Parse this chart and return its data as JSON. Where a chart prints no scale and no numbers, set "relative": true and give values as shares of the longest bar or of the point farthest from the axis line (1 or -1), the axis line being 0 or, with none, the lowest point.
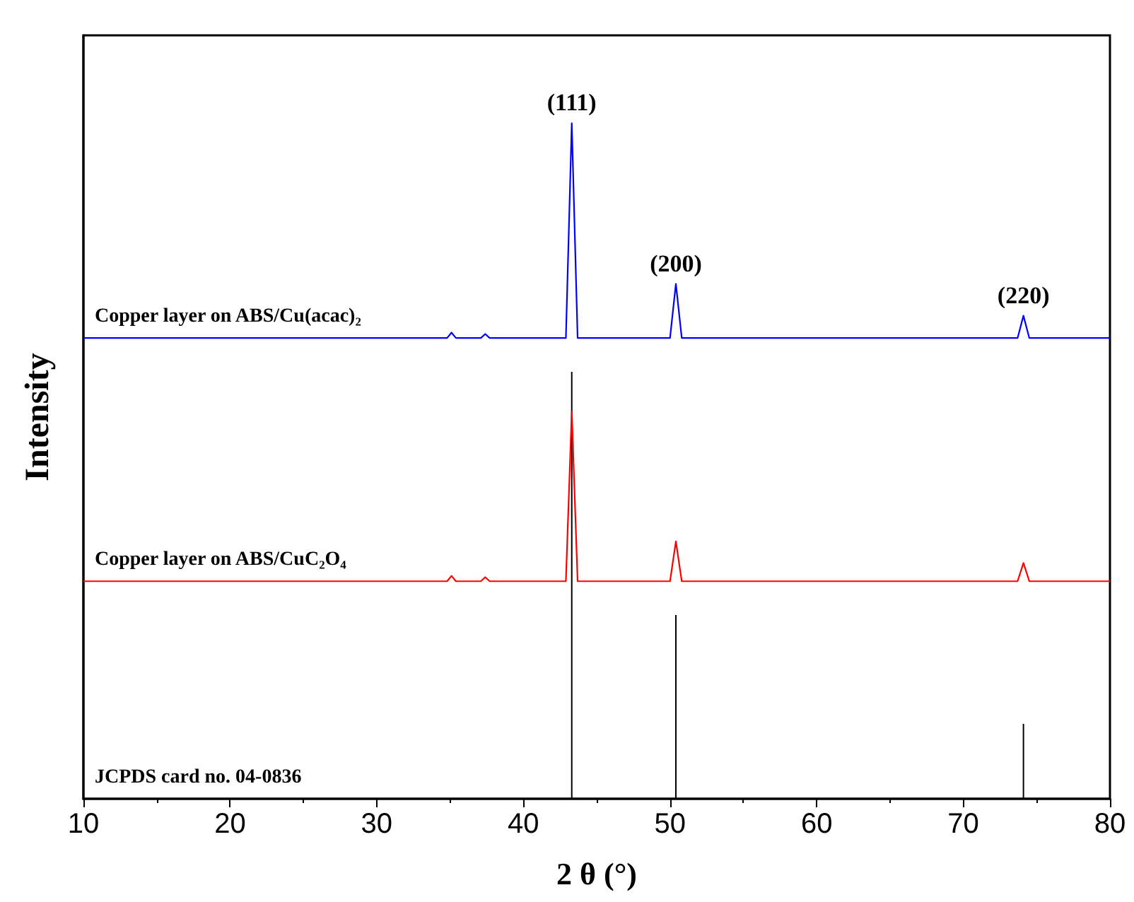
{
  "chart_data": {
    "type": "line",
    "xlabel": "2 θ (°)",
    "ylabel": "Intensity",
    "relative": true,
    "marker": "none",
    "legend": false,
    "grid": false,
    "xlim": [
      10,
      80
    ],
    "xticks": [
      10,
      20,
      30,
      40,
      50,
      60,
      70,
      80
    ],
    "series": [
      {
        "name": "Copper layer on ABS/Cu(acac)₂",
        "color": "#0000ff",
        "x": [
          10,
          34.8,
          35.1,
          35.4,
          37.1,
          37.4,
          37.7,
          42.9,
          43.3,
          43.7,
          50.0,
          50.4,
          50.8,
          73.7,
          74.1,
          74.5,
          80
        ],
        "values": [
          0.682,
          0.682,
          0.69,
          0.682,
          0.682,
          0.688,
          0.682,
          0.682,
          1,
          0.682,
          0.682,
          0.762,
          0.682,
          0.682,
          0.715,
          0.682,
          0.682
        ]
      },
      {
        "name": "Copper layer on ABS/CuC₂O₄",
        "color": "#ff0000",
        "x": [
          10,
          34.8,
          35.1,
          35.4,
          37.1,
          37.4,
          37.7,
          42.9,
          43.3,
          43.7,
          50.0,
          50.4,
          50.8,
          73.7,
          74.1,
          74.5,
          80
        ],
        "values": [
          0.322,
          0.322,
          0.33,
          0.322,
          0.322,
          0.328,
          0.322,
          0.322,
          0.573,
          0.322,
          0.322,
          0.381,
          0.322,
          0.322,
          0.349,
          0.322,
          0.322
        ]
      },
      {
        "type": "bar",
        "color": "#000000",
        "x": [
          43.3,
          50.4,
          74.1
        ],
        "values": [
          0.632,
          0.272,
          0.111
        ]
      }
    ],
    "annotations": [
      {
        "text": "(111)",
        "x": 43.3,
        "y": 1
      },
      {
        "text": "(200)",
        "x": 50.4,
        "y": 0.762
      },
      {
        "text": "(220)",
        "x": 74.1,
        "y": 0.715
      },
      "JCPDS card no. 04-0836"
    ]
  }
}
